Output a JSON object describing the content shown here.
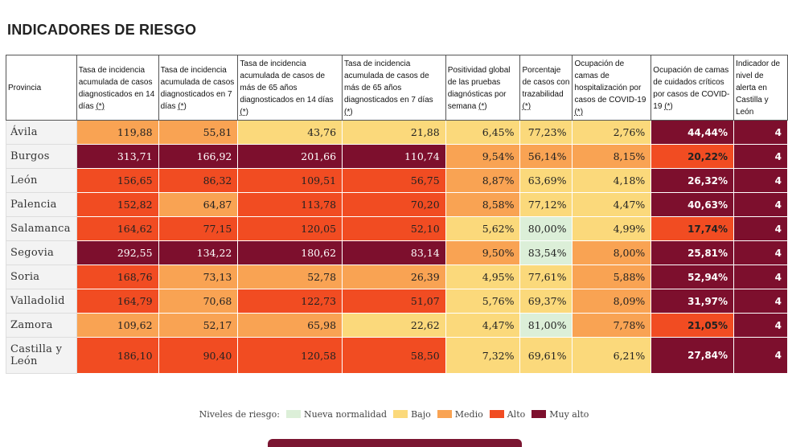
{
  "title": "INDICADORES DE RIESGO",
  "colors": {
    "nueva": "#dcefd8",
    "bajo": "#fbd97b",
    "medio": "#f9a353",
    "alto": "#f14c22",
    "muyalto": "#7d0f2d"
  },
  "headers": [
    {
      "text": "Provincia",
      "ast": ""
    },
    {
      "text": "Tasa de incidencia acumulada de casos diagnosticados en 14 días ",
      "ast": "(*)"
    },
    {
      "text": "Tasa de incidencia acumulada de casos diagnosticados en 7 días ",
      "ast": "(*)"
    },
    {
      "text": "Tasa de incidencia acumulada de casos de más de 65 años diagnosticados en 14 días ",
      "ast": "(*)"
    },
    {
      "text": "Tasa de incidencia acumulada de casos de más de 65 años diagnosticados en 7 días ",
      "ast": "(*)"
    },
    {
      "text": "Positividad global de las pruebas diagnósticas por semana ",
      "ast": "(*)"
    },
    {
      "text": "Porcentaje de casos con trazabilidad ",
      "ast": "(*)"
    },
    {
      "text": "Ocupación de camas de hospitalización por casos de COVID-19 ",
      "ast": "(*)"
    },
    {
      "text": "Ocupación de camas de cuidados críticos por casos de COVID-19 ",
      "ast": "(*)"
    },
    {
      "text": "Indicador de nivel de alerta en Castilla y León",
      "ast": ""
    }
  ],
  "rows": [
    {
      "prov": "Ávila",
      "cells": [
        [
          "119,88",
          "medio"
        ],
        [
          "55,81",
          "medio"
        ],
        [
          "43,76",
          "bajo"
        ],
        [
          "21,88",
          "bajo"
        ],
        [
          "6,45%",
          "bajo"
        ],
        [
          "77,23%",
          "bajo"
        ],
        [
          "2,76%",
          "bajo"
        ],
        [
          "44,44%",
          "muyalto"
        ],
        [
          "4",
          "muyalto"
        ]
      ]
    },
    {
      "prov": "Burgos",
      "cells": [
        [
          "313,71",
          "muyalto"
        ],
        [
          "166,92",
          "muyalto"
        ],
        [
          "201,66",
          "muyalto"
        ],
        [
          "110,74",
          "muyalto"
        ],
        [
          "9,54%",
          "medio"
        ],
        [
          "56,14%",
          "medio"
        ],
        [
          "8,15%",
          "medio"
        ],
        [
          "20,22%",
          "alto"
        ],
        [
          "4",
          "muyalto"
        ]
      ]
    },
    {
      "prov": "León",
      "cells": [
        [
          "156,65",
          "alto"
        ],
        [
          "86,32",
          "alto"
        ],
        [
          "109,51",
          "alto"
        ],
        [
          "56,75",
          "alto"
        ],
        [
          "8,87%",
          "medio"
        ],
        [
          "63,69%",
          "bajo"
        ],
        [
          "4,18%",
          "bajo"
        ],
        [
          "26,32%",
          "muyalto"
        ],
        [
          "4",
          "muyalto"
        ]
      ]
    },
    {
      "prov": "Palencia",
      "cells": [
        [
          "152,82",
          "alto"
        ],
        [
          "64,87",
          "medio"
        ],
        [
          "113,78",
          "alto"
        ],
        [
          "70,20",
          "alto"
        ],
        [
          "8,58%",
          "medio"
        ],
        [
          "77,12%",
          "bajo"
        ],
        [
          "4,47%",
          "bajo"
        ],
        [
          "40,63%",
          "muyalto"
        ],
        [
          "4",
          "muyalto"
        ]
      ]
    },
    {
      "prov": "Salamanca",
      "cells": [
        [
          "164,62",
          "alto"
        ],
        [
          "77,15",
          "alto"
        ],
        [
          "120,05",
          "alto"
        ],
        [
          "52,10",
          "alto"
        ],
        [
          "5,62%",
          "bajo"
        ],
        [
          "80,00%",
          "nueva"
        ],
        [
          "4,99%",
          "bajo"
        ],
        [
          "17,74%",
          "alto"
        ],
        [
          "4",
          "muyalto"
        ]
      ]
    },
    {
      "prov": "Segovia",
      "cells": [
        [
          "292,55",
          "muyalto"
        ],
        [
          "134,22",
          "muyalto"
        ],
        [
          "180,62",
          "muyalto"
        ],
        [
          "83,14",
          "muyalto"
        ],
        [
          "9,50%",
          "medio"
        ],
        [
          "83,54%",
          "nueva"
        ],
        [
          "8,00%",
          "medio"
        ],
        [
          "25,81%",
          "muyalto"
        ],
        [
          "4",
          "muyalto"
        ]
      ]
    },
    {
      "prov": "Soria",
      "cells": [
        [
          "168,76",
          "alto"
        ],
        [
          "73,13",
          "medio"
        ],
        [
          "52,78",
          "medio"
        ],
        [
          "26,39",
          "medio"
        ],
        [
          "4,95%",
          "bajo"
        ],
        [
          "77,61%",
          "bajo"
        ],
        [
          "5,88%",
          "medio"
        ],
        [
          "52,94%",
          "muyalto"
        ],
        [
          "4",
          "muyalto"
        ]
      ]
    },
    {
      "prov": "Valladolid",
      "cells": [
        [
          "164,79",
          "alto"
        ],
        [
          "70,68",
          "medio"
        ],
        [
          "122,73",
          "alto"
        ],
        [
          "51,07",
          "alto"
        ],
        [
          "5,76%",
          "bajo"
        ],
        [
          "69,37%",
          "bajo"
        ],
        [
          "8,09%",
          "medio"
        ],
        [
          "31,97%",
          "muyalto"
        ],
        [
          "4",
          "muyalto"
        ]
      ]
    },
    {
      "prov": "Zamora",
      "cells": [
        [
          "109,62",
          "medio"
        ],
        [
          "52,17",
          "medio"
        ],
        [
          "65,98",
          "medio"
        ],
        [
          "22,62",
          "bajo"
        ],
        [
          "4,47%",
          "bajo"
        ],
        [
          "81,00%",
          "nueva"
        ],
        [
          "7,78%",
          "medio"
        ],
        [
          "21,05%",
          "alto"
        ],
        [
          "4",
          "muyalto"
        ]
      ]
    },
    {
      "prov": "Castilla y León",
      "cells": [
        [
          "186,10",
          "alto"
        ],
        [
          "90,40",
          "alto"
        ],
        [
          "120,58",
          "alto"
        ],
        [
          "58,50",
          "alto"
        ],
        [
          "7,32%",
          "bajo"
        ],
        [
          "69,61%",
          "bajo"
        ],
        [
          "6,21%",
          "bajo"
        ],
        [
          "27,84%",
          "muyalto"
        ],
        [
          "4",
          "muyalto"
        ]
      ]
    }
  ],
  "legend": {
    "label": "Niveles de riesgo:",
    "items": [
      {
        "label": "Nueva normalidad",
        "level": "nueva"
      },
      {
        "label": "Bajo",
        "level": "bajo"
      },
      {
        "label": "Medio",
        "level": "medio"
      },
      {
        "label": "Alto",
        "level": "alto"
      },
      {
        "label": "Muy alto",
        "level": "muyalto"
      }
    ]
  }
}
